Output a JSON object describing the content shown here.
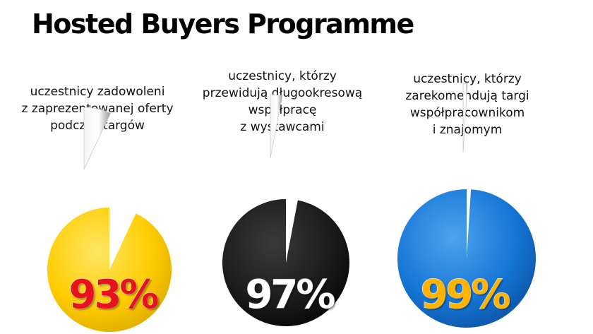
{
  "title": "Hosted Buyers Programme",
  "chart_data": [
    {
      "type": "pie",
      "caption_lines": [
        "uczestnicy zadowoleni",
        "z zaprezentowanej oferty",
        "podczas targów"
      ],
      "values": [
        93,
        7
      ],
      "label": "93%",
      "colors": {
        "main": "#FFCC00",
        "slice": "#E8E8E8",
        "label": "#E8121A"
      }
    },
    {
      "type": "pie",
      "caption_lines": [
        "uczestnicy, którzy",
        "przewidują długookresową",
        "współpracę",
        "z wystawcami"
      ],
      "values": [
        97,
        3
      ],
      "label": "97%",
      "colors": {
        "main": "#1C1C1C",
        "slice": "#E8E8E8",
        "label": "#FFFFFF"
      }
    },
    {
      "type": "pie",
      "caption_lines": [
        "uczestnicy, którzy",
        "zarekomendują targi",
        "współpracownikom",
        "i znajomym"
      ],
      "values": [
        99,
        1
      ],
      "label": "99%",
      "colors": {
        "main": "#1577D6",
        "slice": "#E8E8E8",
        "label": "#FFB400"
      }
    }
  ]
}
